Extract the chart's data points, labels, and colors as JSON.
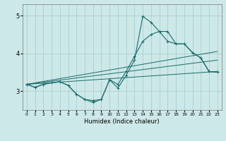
{
  "xlabel": "Humidex (Indice chaleur)",
  "xlim": [
    -0.5,
    23.5
  ],
  "ylim": [
    2.5,
    5.3
  ],
  "yticks": [
    3,
    4,
    5
  ],
  "xticks": [
    0,
    1,
    2,
    3,
    4,
    5,
    6,
    7,
    8,
    9,
    10,
    11,
    12,
    13,
    14,
    15,
    16,
    17,
    18,
    19,
    20,
    21,
    22,
    23
  ],
  "bg_color": "#cde8e8",
  "grid_color": "#aacfcf",
  "line_color": "#1a6b6b",
  "lines_jagged": [
    {
      "x": [
        0,
        1,
        2,
        3,
        4,
        5,
        6,
        7,
        8,
        9,
        10,
        11,
        12,
        13,
        14,
        15,
        16,
        17,
        18,
        19,
        20,
        21,
        22,
        23
      ],
      "y": [
        3.18,
        3.1,
        3.18,
        3.22,
        3.25,
        3.15,
        2.92,
        2.78,
        2.7,
        2.78,
        3.3,
        3.08,
        3.42,
        3.82,
        4.98,
        4.82,
        4.58,
        4.58,
        4.25,
        4.25,
        4.02,
        3.88,
        3.52,
        3.5
      ]
    },
    {
      "x": [
        0,
        1,
        2,
        3,
        4,
        5,
        6,
        7,
        8,
        9,
        10,
        11,
        12,
        13,
        14,
        15,
        16,
        17,
        18,
        19,
        20,
        21,
        22,
        23
      ],
      "y": [
        3.18,
        3.1,
        3.18,
        3.22,
        3.25,
        3.15,
        2.92,
        2.78,
        2.75,
        2.78,
        3.3,
        3.18,
        3.52,
        3.92,
        4.32,
        4.5,
        4.58,
        4.32,
        4.25,
        4.25,
        4.02,
        3.88,
        3.52,
        3.5
      ]
    }
  ],
  "lines_straight": [
    {
      "x": [
        0,
        23
      ],
      "y": [
        3.18,
        4.05
      ]
    },
    {
      "x": [
        0,
        23
      ],
      "y": [
        3.18,
        3.82
      ]
    },
    {
      "x": [
        0,
        23
      ],
      "y": [
        3.18,
        3.52
      ]
    }
  ]
}
